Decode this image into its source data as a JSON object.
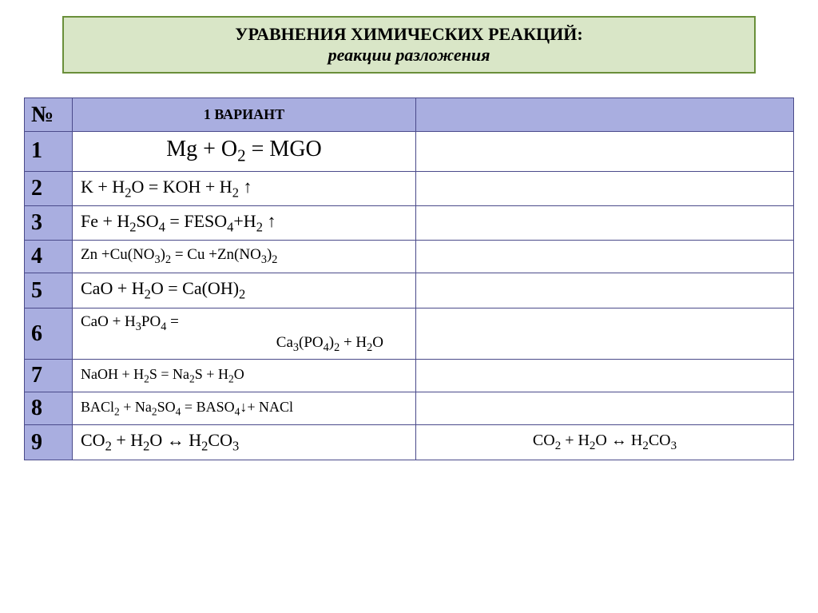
{
  "colors": {
    "title_bg": "#d9e6c7",
    "title_border": "#6a8f3a",
    "header_bg": "#a9aee0",
    "numcol_bg": "#a9aee0",
    "cell_bg": "#ffffff",
    "border": "#4a4a8a",
    "text": "#000000"
  },
  "title": {
    "line1": "УРАВНЕНИЯ ХИМИЧЕСКИХ РЕАКЦИЙ:",
    "line2": "реакции разложения"
  },
  "header": {
    "num": "№",
    "variant": "1 ВАРИАНТ"
  },
  "rows": [
    {
      "n": "1",
      "eq": "Mg + O2 = MGO",
      "style": "big",
      "ans": ""
    },
    {
      "n": "2",
      "eq": "K + H2O = KOH + H2 ↑",
      "style": "",
      "ans": ""
    },
    {
      "n": "3",
      "eq": "Fe + H2SO4 = FESO4+H2   ↑",
      "style": "",
      "ans": ""
    },
    {
      "n": "4",
      "eq": "Zn +Cu(NO3)2 = Cu +Zn(NO3)2",
      "style": "small",
      "ans": ""
    },
    {
      "n": "5",
      "eq": "CaO + H2O = Ca(OH)2",
      "style": "",
      "ans": ""
    },
    {
      "n": "6",
      "eq": "CaO + H3PO4 =",
      "eq_line2": "Ca3(PO4)2 + H2O",
      "style": "small",
      "ans": ""
    },
    {
      "n": "7",
      "eq": "NaOH + H2S = Na2S + H2O",
      "style": "tiny",
      "ans": ""
    },
    {
      "n": "8",
      "eq": "BACl2 + Na2SO4 = BASO4↓+ NACl",
      "style": "tiny",
      "ans": ""
    },
    {
      "n": "9",
      "eq": "CO2 + H2O ↔ H2CO3",
      "style": "",
      "ans": "CO2 + H2O ↔ H2CO3"
    }
  ]
}
